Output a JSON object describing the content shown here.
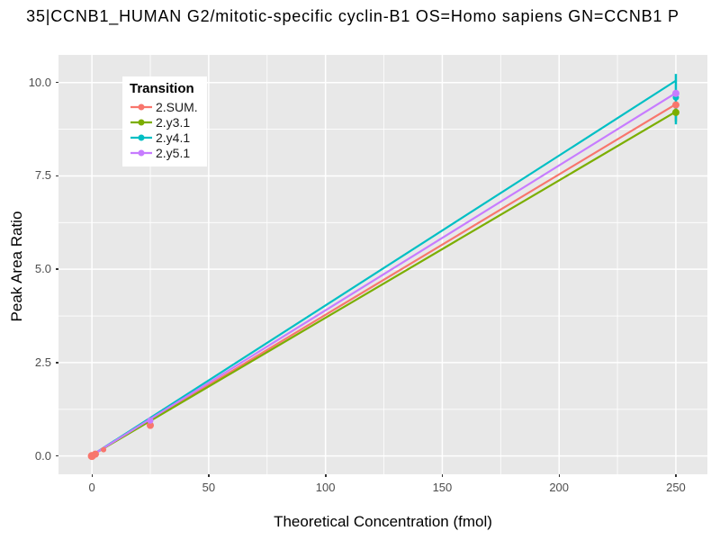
{
  "title": "35|CCNB1_HUMAN G2/mitotic-specific cyclin-B1 OS=Homo sapiens GN=CCNB1 P",
  "chart_data": {
    "type": "line",
    "title": "35|CCNB1_HUMAN G2/mitotic-specific cyclin-B1 OS=Homo sapiens GN=CCNB1 P",
    "xlabel": "Theoretical Concentration (fmol)",
    "ylabel": "Peak Area Ratio",
    "x_ticks": [
      0,
      50,
      100,
      150,
      200,
      250
    ],
    "y_ticks": [
      0.0,
      2.5,
      5.0,
      7.5,
      10.0
    ],
    "x_tick_labels": [
      "0",
      "50",
      "100",
      "150",
      "200",
      "250"
    ],
    "y_tick_labels": [
      "0.0",
      "2.5",
      "5.0",
      "7.5",
      "10.0"
    ],
    "xlim": [
      -14.3,
      263.5
    ],
    "ylim": [
      -0.49,
      10.74
    ],
    "grid": true,
    "panel_bg": "#E8E8E8",
    "grid_color": "#FFFFFF",
    "legend_title": "Transition",
    "legend_position": "top-left-inside",
    "series": [
      {
        "name": "2.SUM.",
        "color": "#F8766D",
        "line": [
          [
            0,
            0.02
          ],
          [
            250,
            9.42
          ]
        ],
        "points": [
          {
            "x": 0,
            "y": 0.0,
            "r": 4.5
          },
          {
            "x": 1.5,
            "y": 0.05,
            "r": 4
          },
          {
            "x": 5,
            "y": 0.17,
            "r": 3
          },
          {
            "x": 25,
            "y": 0.82,
            "r": 4
          },
          {
            "x": 250,
            "y": 9.4,
            "r": 4
          }
        ],
        "error_bars": []
      },
      {
        "name": "2.y3.1",
        "color": "#7CAE00",
        "line": [
          [
            0,
            0.02
          ],
          [
            250,
            9.22
          ]
        ],
        "points": [
          {
            "x": 250,
            "y": 9.2,
            "r": 4
          }
        ],
        "error_bars": [
          {
            "x": 250,
            "lo": 8.95,
            "hi": 9.45
          }
        ]
      },
      {
        "name": "2.y4.1",
        "color": "#00BFC4",
        "line": [
          [
            0,
            0.02
          ],
          [
            250,
            10.05
          ]
        ],
        "points": [
          {
            "x": 250,
            "y": 9.6,
            "r": 3.5
          }
        ],
        "error_bars": [
          {
            "x": 250,
            "lo": 8.88,
            "hi": 10.23
          }
        ]
      },
      {
        "name": "2.y5.1",
        "color": "#C77CFF",
        "line": [
          [
            0,
            0.02
          ],
          [
            250,
            9.72
          ]
        ],
        "points": [
          {
            "x": 25,
            "y": 0.95,
            "r": 3.5
          },
          {
            "x": 250,
            "y": 9.71,
            "r": 4
          }
        ],
        "error_bars": []
      }
    ]
  }
}
